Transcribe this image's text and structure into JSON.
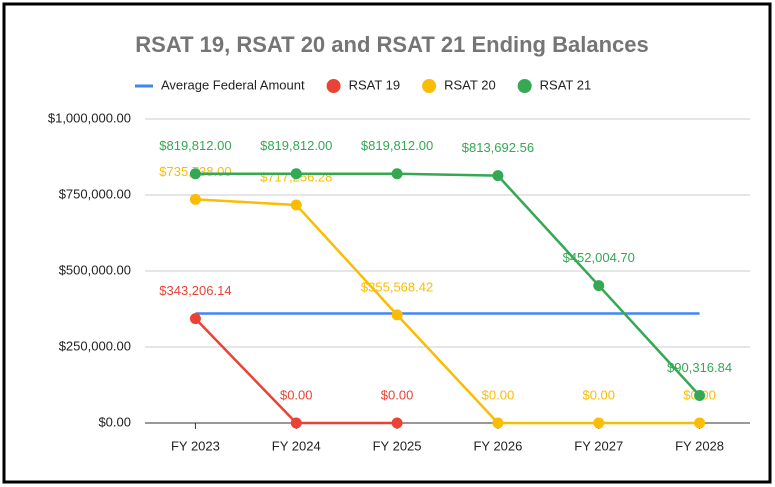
{
  "chart_data": {
    "type": "line",
    "title": "RSAT 19, RSAT 20 and RSAT 21 Ending Balances",
    "categories": [
      "FY 2023",
      "FY 2024",
      "FY 2025",
      "FY 2026",
      "FY 2027",
      "FY 2028"
    ],
    "series": [
      {
        "name": "Average Federal Amount",
        "color": "#4285f4",
        "values": [
          360000,
          360000,
          360000,
          360000,
          360000,
          360000
        ]
      },
      {
        "name": "RSAT 19",
        "color": "#ea4335",
        "values": [
          343206.14,
          0,
          0,
          null,
          null,
          null
        ],
        "value_labels": [
          "$343,206.14",
          "$0.00",
          "$0.00",
          null,
          null,
          null
        ]
      },
      {
        "name": "RSAT 20",
        "color": "#fbbc04",
        "values": [
          735738.0,
          717256.28,
          355568.42,
          0,
          0,
          0
        ],
        "value_labels": [
          "$735,738.00",
          "$717,256.28",
          "$355,568.42",
          "$0.00",
          "$0.00",
          "$0.00"
        ]
      },
      {
        "name": "RSAT 21",
        "color": "#34a853",
        "values": [
          819812.0,
          819812.0,
          819812.0,
          813692.56,
          452004.7,
          90316.84
        ],
        "value_labels": [
          "$819,812.00",
          "$819,812.00",
          "$819,812.00",
          "$813,692.56",
          "$452,004.70",
          "$90,316.84"
        ]
      }
    ],
    "ylim": [
      0,
      1000000
    ],
    "yticks": [
      {
        "value": 0,
        "label": "$0.00"
      },
      {
        "value": 250000,
        "label": "$250,000.00"
      },
      {
        "value": 500000,
        "label": "$500,000.00"
      },
      {
        "value": 750000,
        "label": "$750,000.00"
      },
      {
        "value": 1000000,
        "label": "$1,000,000.00"
      }
    ],
    "grid": true,
    "legend": "top"
  }
}
